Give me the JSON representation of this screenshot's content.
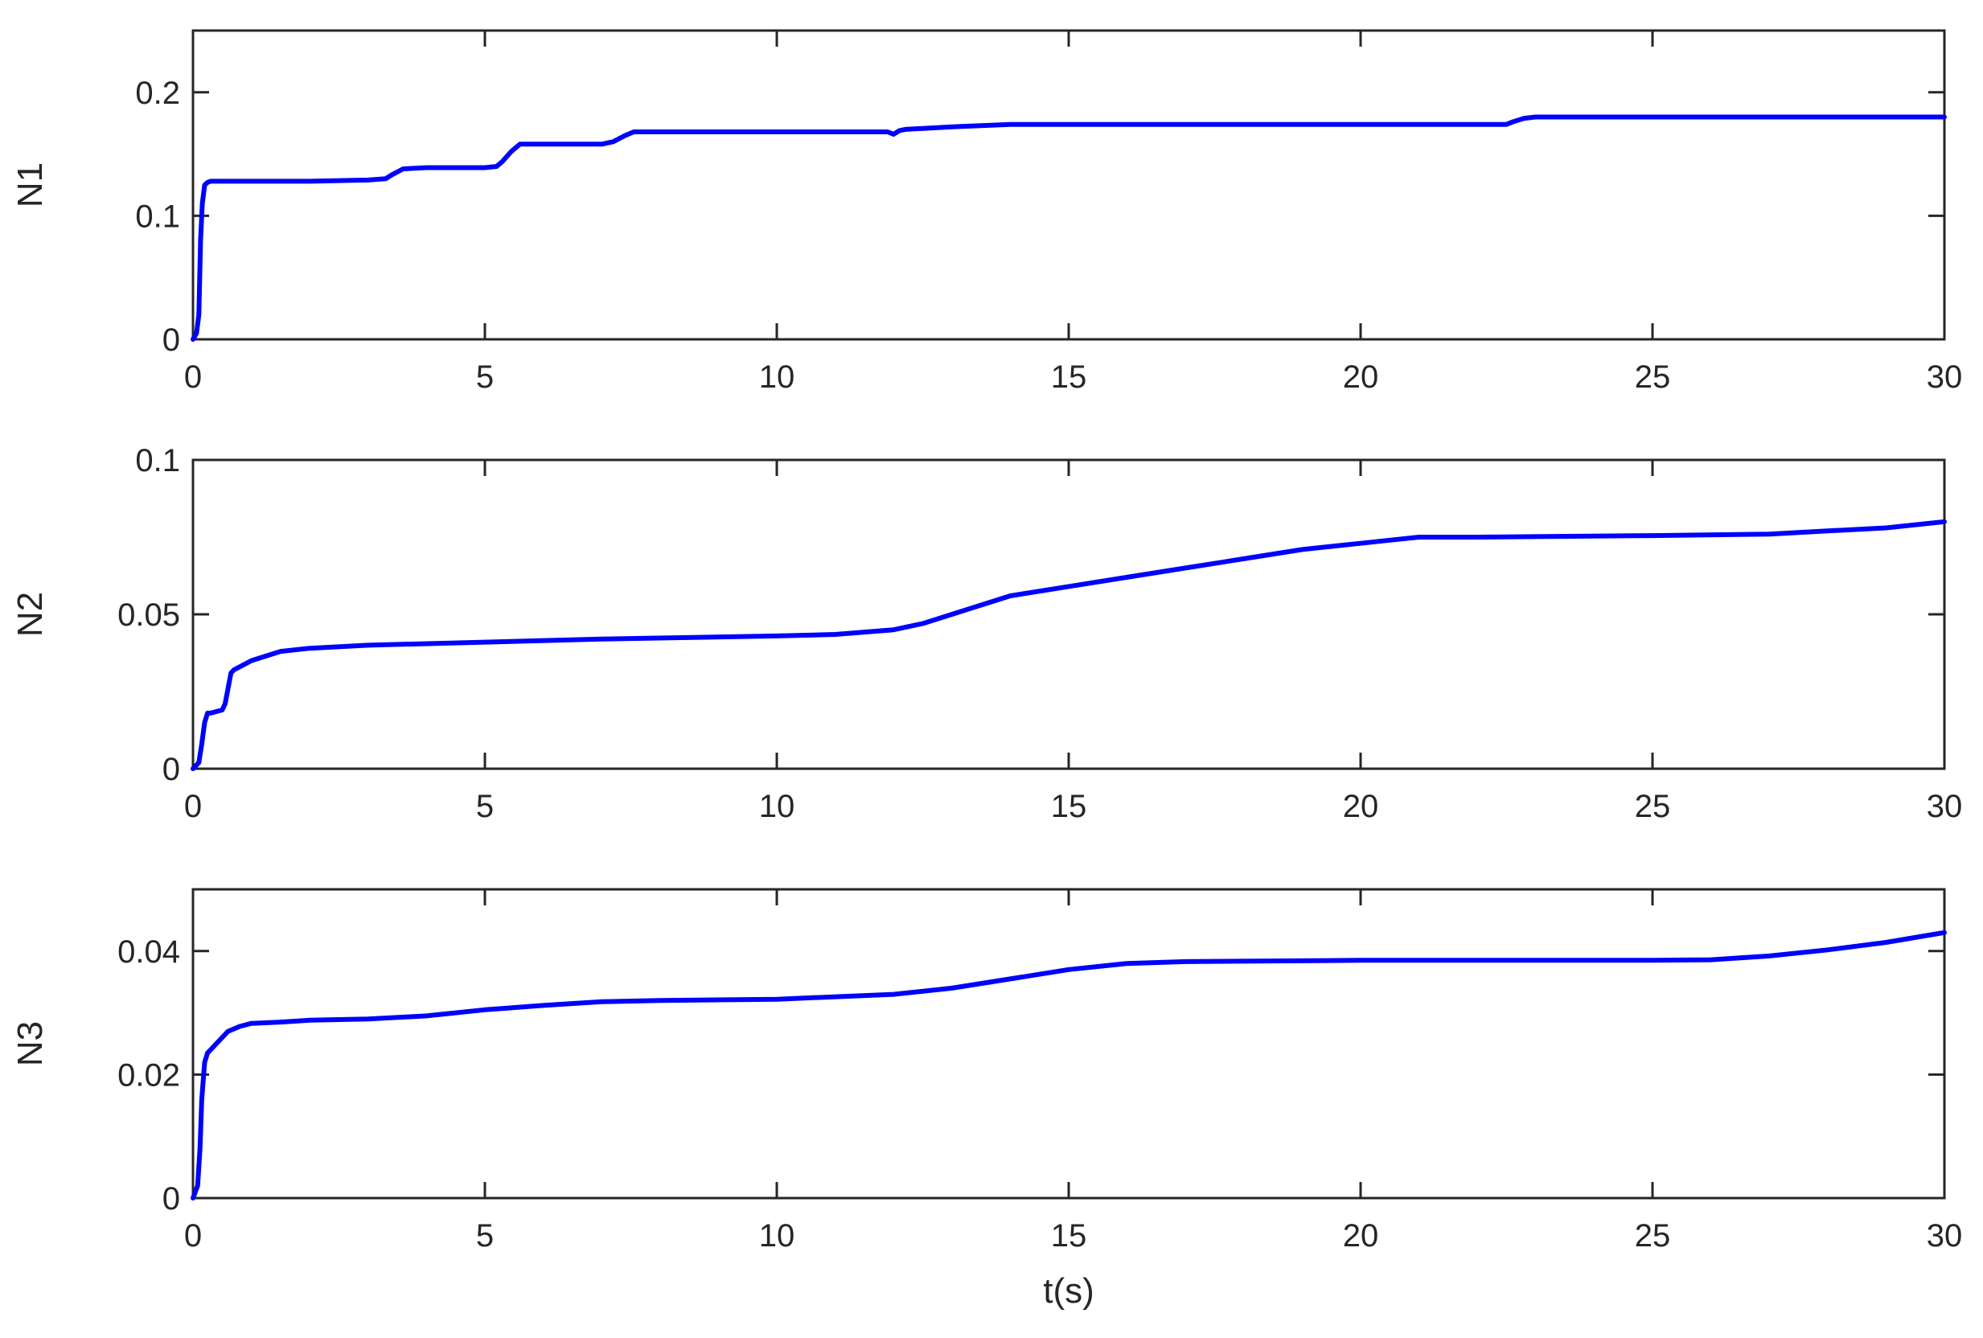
{
  "chart_data": [
    {
      "type": "line",
      "ylabel": "N1",
      "xlabel": "",
      "xlim": [
        0,
        30
      ],
      "ylim": [
        0,
        0.25
      ],
      "xticks": [
        "0",
        "5",
        "10",
        "15",
        "20",
        "25",
        "30"
      ],
      "yticks": [
        "0",
        "0.1",
        "0.2"
      ],
      "ytick_values": [
        0,
        0.1,
        0.2
      ],
      "grid": false,
      "color": "#0000ff",
      "series": [
        {
          "x": [
            0,
            0.06,
            0.1,
            0.13,
            0.16,
            0.2,
            0.25,
            0.3,
            1.0,
            2.0,
            3.0,
            3.3,
            3.4,
            3.6,
            4.0,
            5.0,
            5.2,
            5.3,
            5.45,
            5.6,
            6.0,
            7.0,
            7.2,
            7.4,
            7.55,
            8.0,
            10.0,
            11.9,
            12.0,
            12.1,
            12.2,
            13.0,
            14.0,
            15.0,
            20.0,
            22.5,
            22.6,
            22.8,
            23.0,
            25.0,
            30.0
          ],
          "y": [
            0,
            0.005,
            0.02,
            0.08,
            0.11,
            0.125,
            0.127,
            0.128,
            0.128,
            0.128,
            0.129,
            0.13,
            0.133,
            0.138,
            0.139,
            0.139,
            0.14,
            0.144,
            0.152,
            0.158,
            0.158,
            0.158,
            0.16,
            0.165,
            0.168,
            0.168,
            0.168,
            0.168,
            0.166,
            0.169,
            0.17,
            0.172,
            0.174,
            0.174,
            0.174,
            0.174,
            0.176,
            0.179,
            0.18,
            0.18,
            0.18
          ]
        }
      ]
    },
    {
      "type": "line",
      "ylabel": "N2",
      "xlabel": "",
      "xlim": [
        0,
        30
      ],
      "ylim": [
        0,
        0.1
      ],
      "xticks": [
        "0",
        "5",
        "10",
        "15",
        "20",
        "25",
        "30"
      ],
      "yticks": [
        "0",
        "0.05",
        "0.1"
      ],
      "ytick_values": [
        0,
        0.05,
        0.1
      ],
      "grid": false,
      "color": "#0000ff",
      "series": [
        {
          "x": [
            0,
            0.1,
            0.15,
            0.2,
            0.25,
            0.3,
            0.5,
            0.55,
            0.6,
            0.65,
            0.7,
            0.8,
            1.0,
            1.5,
            2.0,
            3.0,
            5.0,
            7.0,
            10.0,
            11.0,
            12.0,
            12.5,
            13.0,
            14.0,
            15.0,
            16.0,
            17.0,
            18.0,
            19.0,
            19.5,
            20.0,
            20.5,
            21.0,
            22.0,
            25.0,
            27.0,
            28.0,
            29.0,
            30.0
          ],
          "y": [
            0,
            0.002,
            0.008,
            0.015,
            0.018,
            0.018,
            0.019,
            0.021,
            0.026,
            0.031,
            0.032,
            0.033,
            0.035,
            0.038,
            0.039,
            0.04,
            0.041,
            0.042,
            0.043,
            0.0435,
            0.045,
            0.047,
            0.05,
            0.056,
            0.059,
            0.062,
            0.065,
            0.068,
            0.071,
            0.072,
            0.073,
            0.074,
            0.075,
            0.075,
            0.0755,
            0.076,
            0.077,
            0.078,
            0.08
          ]
        }
      ]
    },
    {
      "type": "line",
      "ylabel": "N3",
      "xlabel": "t(s)",
      "xlim": [
        0,
        30
      ],
      "ylim": [
        0,
        0.05
      ],
      "xticks": [
        "0",
        "5",
        "10",
        "15",
        "20",
        "25",
        "30"
      ],
      "yticks": [
        "0",
        "0.02",
        "0.04"
      ],
      "ytick_values": [
        0,
        0.02,
        0.04
      ],
      "grid": false,
      "color": "#0000ff",
      "series": [
        {
          "x": [
            0,
            0.08,
            0.12,
            0.15,
            0.2,
            0.25,
            0.3,
            0.4,
            0.6,
            0.8,
            1.0,
            1.5,
            2.0,
            3.0,
            4.0,
            5.0,
            6.0,
            7.0,
            8.0,
            10.0,
            12.0,
            13.0,
            14.0,
            15.0,
            16.0,
            17.0,
            20.0,
            25.0,
            26.0,
            27.0,
            28.0,
            29.0,
            30.0
          ],
          "y": [
            0,
            0.002,
            0.008,
            0.016,
            0.022,
            0.0235,
            0.024,
            0.025,
            0.027,
            0.0278,
            0.0283,
            0.0285,
            0.0288,
            0.029,
            0.0295,
            0.0305,
            0.0312,
            0.0318,
            0.032,
            0.0322,
            0.033,
            0.034,
            0.0355,
            0.037,
            0.038,
            0.0383,
            0.0385,
            0.0385,
            0.0386,
            0.0392,
            0.0402,
            0.0414,
            0.043
          ]
        }
      ]
    }
  ]
}
